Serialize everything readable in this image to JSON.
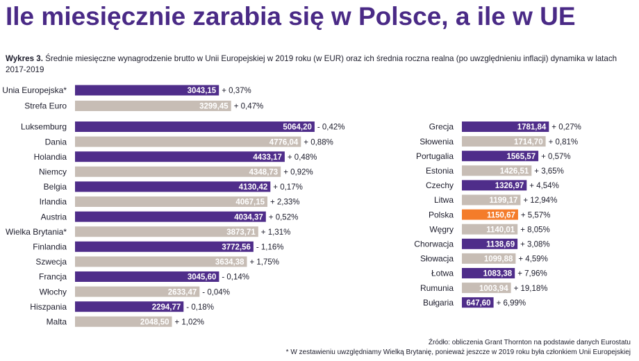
{
  "headline": "Ile miesięcznie zarabia się w Polsce, a ile w UE",
  "caption": {
    "lead": "Wykres 3.",
    "text": "Średnie miesięczne wynagrodzenie brutto w Unii Europejskiej w 2019 roku (w EUR) oraz ich średnia roczna realna (po uwzględnieniu inflacji) dynamika w latach 2017-2019"
  },
  "colors": {
    "purple": "#4f2d8a",
    "beige": "#c7bdb5",
    "orange": "#f47c2a",
    "title": "#4a2a86"
  },
  "chart_data": {
    "type": "bar",
    "title": "Średnie miesięczne wynagrodzenie brutto w Unii Europejskiej w 2019 roku (w EUR) oraz ich średnia roczna realna (po uwzględnieniu inflacji) dynamika w latach 2017-2019",
    "unit": "EUR",
    "xlim": [
      0,
      5800
    ],
    "groups": [
      {
        "name": "aggregates",
        "items": [
          {
            "label": "Unia Europejska*",
            "value": 3043.15,
            "value_text": "3043,15",
            "change": "+ 0,37%",
            "color": "purple"
          },
          {
            "label": "Strefa Euro",
            "value": 3299.45,
            "value_text": "3299,45",
            "change": "+ 0,47%",
            "color": "beige"
          }
        ]
      },
      {
        "name": "left",
        "items": [
          {
            "label": "Luksemburg",
            "value": 5064.2,
            "value_text": "5064,20",
            "change": "- 0,42%",
            "color": "purple"
          },
          {
            "label": "Dania",
            "value": 4776.04,
            "value_text": "4776,04",
            "change": "+ 0,88%",
            "color": "beige"
          },
          {
            "label": "Holandia",
            "value": 4433.17,
            "value_text": "4433,17",
            "change": "+ 0,48%",
            "color": "purple"
          },
          {
            "label": "Niemcy",
            "value": 4348.73,
            "value_text": "4348,73",
            "change": "+ 0,92%",
            "color": "beige"
          },
          {
            "label": "Belgia",
            "value": 4130.42,
            "value_text": "4130,42",
            "change": "+ 0,17%",
            "color": "purple"
          },
          {
            "label": "Irlandia",
            "value": 4067.15,
            "value_text": "4067,15",
            "change": "+ 2,33%",
            "color": "beige"
          },
          {
            "label": "Austria",
            "value": 4034.37,
            "value_text": "4034,37",
            "change": "+ 0,52%",
            "color": "purple"
          },
          {
            "label": "Wielka Brytania*",
            "value": 3873.71,
            "value_text": "3873,71",
            "change": "+ 1,31%",
            "color": "beige"
          },
          {
            "label": "Finlandia",
            "value": 3772.56,
            "value_text": "3772,56",
            "change": "- 1,16%",
            "color": "purple"
          },
          {
            "label": "Szwecja",
            "value": 3634.38,
            "value_text": "3634,38",
            "change": "+ 1,75%",
            "color": "beige"
          },
          {
            "label": "Francja",
            "value": 3045.6,
            "value_text": "3045,60",
            "change": "- 0,14%",
            "color": "purple"
          },
          {
            "label": "Włochy",
            "value": 2633.47,
            "value_text": "2633,47",
            "change": "- 0,04%",
            "color": "beige"
          },
          {
            "label": "Hiszpania",
            "value": 2294.77,
            "value_text": "2294,77",
            "change": "- 0,18%",
            "color": "purple"
          },
          {
            "label": "Malta",
            "value": 2048.5,
            "value_text": "2048,50",
            "change": "+ 1,02%",
            "color": "beige"
          }
        ]
      },
      {
        "name": "right",
        "items": [
          {
            "label": "Grecja",
            "value": 1781.84,
            "value_text": "1781,84",
            "change": "+ 0,27%",
            "color": "purple"
          },
          {
            "label": "Słowenia",
            "value": 1714.7,
            "value_text": "1714,70",
            "change": "+ 0,81%",
            "color": "beige"
          },
          {
            "label": "Portugalia",
            "value": 1565.57,
            "value_text": "1565,57",
            "change": "+ 0,57%",
            "color": "purple"
          },
          {
            "label": "Estonia",
            "value": 1426.51,
            "value_text": "1426,51",
            "change": "+ 3,65%",
            "color": "beige"
          },
          {
            "label": "Czechy",
            "value": 1326.97,
            "value_text": "1326,97",
            "change": "+ 4,54%",
            "color": "purple"
          },
          {
            "label": "Litwa",
            "value": 1199.17,
            "value_text": "1199,17",
            "change": "+ 12,94%",
            "color": "beige"
          },
          {
            "label": "Polska",
            "value": 1150.67,
            "value_text": "1150,67",
            "change": "+ 5,57%",
            "color": "orange"
          },
          {
            "label": "Węgry",
            "value": 1140.01,
            "value_text": "1140,01",
            "change": "+ 8,05%",
            "color": "beige"
          },
          {
            "label": "Chorwacja",
            "value": 1138.69,
            "value_text": "1138,69",
            "change": "+ 3,08%",
            "color": "purple"
          },
          {
            "label": "Słowacja",
            "value": 1099.88,
            "value_text": "1099,88",
            "change": "+ 4,59%",
            "color": "beige"
          },
          {
            "label": "Łotwa",
            "value": 1083.38,
            "value_text": "1083,38",
            "change": "+ 7,96%",
            "color": "purple"
          },
          {
            "label": "Rumunia",
            "value": 1003.94,
            "value_text": "1003,94",
            "change": "+ 19,18%",
            "color": "beige"
          },
          {
            "label": "Bułgaria",
            "value": 647.6,
            "value_text": "647,60",
            "change": "+ 6,99%",
            "color": "purple"
          }
        ]
      }
    ]
  },
  "footnotes": {
    "source": "Źródło: obliczenia Grant Thornton na podstawie danych Eurostatu",
    "note": "* W zestawieniu uwzględniamy Wielką Brytanię, ponieważ jeszcze w 2019 roku była członkiem Unii Europejskiej"
  }
}
